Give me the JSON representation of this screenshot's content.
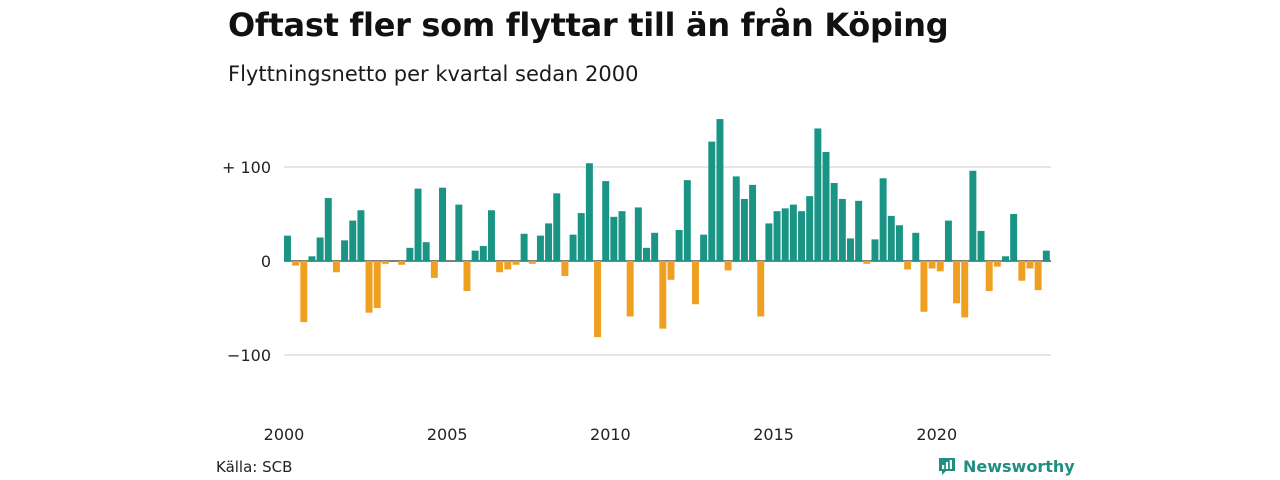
{
  "title": "Oftast fler som flyttar till än från Köping",
  "subtitle": "Flyttningsnetto per kvartal sedan 2000",
  "source": "Källa: SCB",
  "brand": "Newsworthy",
  "colors": {
    "positive": "#1a9484",
    "negative": "#f0a020",
    "grid": "#dddddd",
    "brand": "#1f8f80"
  },
  "chart_data": {
    "type": "bar",
    "title": "Oftast fler som flyttar till än från Köping",
    "subtitle": "Flyttningsnetto per kvartal sedan 2000",
    "xlabel": "",
    "ylabel": "",
    "ylim": [
      -140,
      150
    ],
    "y_ticks": [
      {
        "value": 100,
        "label": "+ 100"
      },
      {
        "value": 0,
        "label": "0"
      },
      {
        "value": -100,
        "label": "−100"
      }
    ],
    "x_ticks": [
      "2000",
      "2005",
      "2010",
      "2015",
      "2020"
    ],
    "first_year": 2000,
    "periods": "quarterly",
    "values": [
      27,
      -5,
      -65,
      5,
      25,
      67,
      -12,
      22,
      43,
      54,
      -55,
      -50,
      -3,
      0,
      -4,
      14,
      77,
      20,
      -18,
      78,
      0,
      60,
      -32,
      11,
      16,
      54,
      -12,
      -9,
      -4,
      29,
      -3,
      27,
      40,
      72,
      -16,
      28,
      51,
      104,
      -81,
      85,
      47,
      53,
      -59,
      57,
      14,
      30,
      -72,
      -20,
      33,
      86,
      -46,
      28,
      127,
      151,
      -10,
      90,
      66,
      81,
      -59,
      40,
      53,
      56,
      60,
      53,
      69,
      141,
      116,
      83,
      66,
      24,
      64,
      -3,
      23,
      88,
      48,
      38,
      -9,
      30,
      -54,
      -8,
      -11,
      43,
      -45,
      -60,
      96,
      32,
      -32,
      -6,
      5,
      50,
      -21,
      -8,
      -31,
      11
    ],
    "grid": true,
    "legend": "none"
  }
}
